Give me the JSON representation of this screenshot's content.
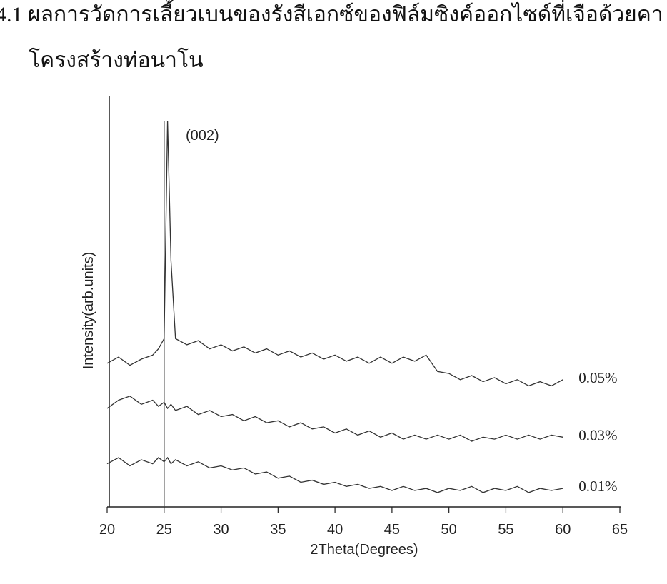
{
  "page_text": [
    "4.1 ผลการวัดการเลี้ยวเบนของรังสีเอกซ์ของฟิล์มซิงค์ออกไซด์ที่เจือด้วยคา",
    "โครงสร้างท่อนาโน"
  ],
  "chart_data": {
    "type": "line",
    "xlabel": "2Theta(Degrees)",
    "ylabel": "Intensity(arb.units)",
    "annotation": "(002)",
    "x": [
      20,
      21,
      22,
      23,
      24,
      24.5,
      25,
      25.3,
      25.6,
      26,
      27,
      28,
      29,
      30,
      31,
      32,
      33,
      34,
      35,
      36,
      37,
      38,
      39,
      40,
      41,
      42,
      43,
      44,
      45,
      46,
      47,
      48,
      49,
      50,
      51,
      52,
      53,
      54,
      55,
      56,
      57,
      58,
      59,
      60
    ],
    "series": [
      {
        "name": "0.05%",
        "color": "#333333",
        "values": [
          35,
          36.5,
          34.5,
          36,
          37,
          38.5,
          41,
          94,
          60,
          41,
          39.5,
          40.5,
          38.5,
          39.5,
          38,
          39,
          37.5,
          38.5,
          37,
          38,
          36.5,
          37.5,
          36,
          37,
          35.5,
          36.5,
          35,
          36.5,
          35,
          36.5,
          35.5,
          37,
          33,
          32.5,
          31,
          32,
          30.5,
          31.5,
          30,
          31,
          29.5,
          30.5,
          29.5,
          31
        ]
      },
      {
        "name": "0.03%",
        "color": "#333333",
        "values": [
          24,
          26,
          27,
          25,
          26,
          24.5,
          25.5,
          24,
          25,
          23.5,
          24.5,
          22.5,
          23.5,
          22,
          22.5,
          21,
          22,
          20.5,
          21,
          19.5,
          20.5,
          19,
          19.5,
          18,
          19,
          17.5,
          18.5,
          17,
          18,
          16.5,
          17.5,
          16.5,
          17.5,
          16.5,
          17.5,
          16,
          17,
          16.5,
          17.5,
          16.5,
          17.5,
          16.5,
          17.5,
          17
        ]
      },
      {
        "name": "0.01%",
        "color": "#333333",
        "values": [
          10.5,
          12,
          10,
          11.5,
          10.5,
          12,
          11,
          12,
          10.5,
          11.5,
          10,
          11,
          9.5,
          10,
          9,
          9.5,
          8,
          8.5,
          7,
          7.5,
          6,
          6.5,
          5.5,
          6,
          5,
          5.5,
          4.5,
          5,
          4,
          5,
          4,
          4.5,
          3.5,
          4.5,
          4,
          5,
          3.5,
          4.5,
          4,
          5,
          3.5,
          4.5,
          4,
          4.5
        ]
      }
    ],
    "xlim": [
      20,
      65
    ],
    "xticks": [
      20,
      25,
      30,
      35,
      40,
      45,
      50,
      55,
      60,
      65
    ],
    "ylim": [
      0,
      100
    ]
  }
}
